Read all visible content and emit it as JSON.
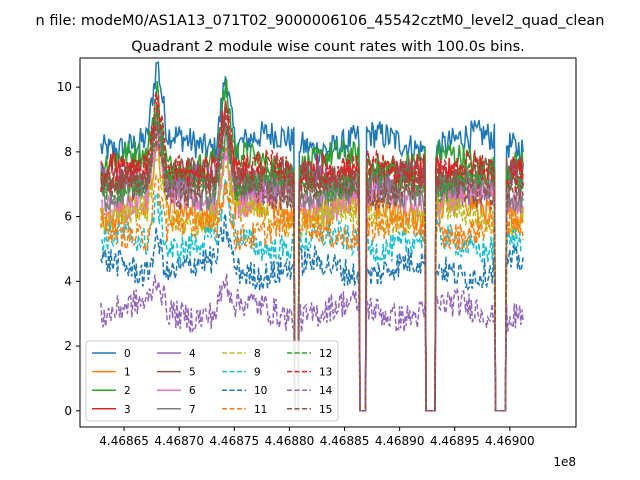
{
  "chart_data": {
    "type": "line",
    "suptitle": "n file: modeM0/AS1A13_071T02_9000006106_45542cztM0_level2_quad_clean",
    "title": "Quadrant 2 module wise count rates with 100.0s bins.",
    "xlabel": "",
    "ylabel": "",
    "x_offset_label": "1e8",
    "xlim": [
      446861000,
      446906000
    ],
    "ylim": [
      -0.5,
      10.9
    ],
    "xticks": [
      446865000,
      446870000,
      446875000,
      446880000,
      446885000,
      446890000,
      446895000,
      446900000
    ],
    "xtick_labels": [
      "4.46865",
      "4.46870",
      "4.46875",
      "4.46880",
      "4.46885",
      "4.46890",
      "4.46895",
      "4.46900"
    ],
    "yticks": [
      0,
      2,
      4,
      6,
      8,
      10
    ],
    "ytick_labels": [
      "0",
      "2",
      "4",
      "6",
      "8",
      "10"
    ],
    "x_start": 446862900,
    "x_end": 446901200,
    "bin_seconds": 100,
    "gaps": [
      [
        446880500,
        446880800
      ],
      [
        446886400,
        446886900
      ],
      [
        446892400,
        446893200
      ],
      [
        446898700,
        446899600
      ]
    ],
    "peaks": [
      446868000,
      446874200
    ],
    "grid": false,
    "legend": {
      "placement": "lower-left",
      "ncol": 4
    },
    "series": [
      {
        "name": "0",
        "color": "#1f77b4",
        "dash": "solid",
        "base": 8.3
      },
      {
        "name": "1",
        "color": "#ff7f0e",
        "dash": "solid",
        "base": 6.2
      },
      {
        "name": "2",
        "color": "#2ca02c",
        "dash": "solid",
        "base": 7.7
      },
      {
        "name": "3",
        "color": "#d62728",
        "dash": "solid",
        "base": 7.3
      },
      {
        "name": "4",
        "color": "#9467bd",
        "dash": "solid",
        "base": 7.0
      },
      {
        "name": "5",
        "color": "#8c564b",
        "dash": "solid",
        "base": 7.2
      },
      {
        "name": "6",
        "color": "#e377c2",
        "dash": "solid",
        "base": 6.5
      },
      {
        "name": "7",
        "color": "#7f7f7f",
        "dash": "solid",
        "base": 6.8
      },
      {
        "name": "8",
        "color": "#bcbd22",
        "dash": "dashed",
        "base": 6.0
      },
      {
        "name": "9",
        "color": "#17becf",
        "dash": "dashed",
        "base": 5.2
      },
      {
        "name": "10",
        "color": "#1f77b4",
        "dash": "dashed",
        "base": 4.4
      },
      {
        "name": "11",
        "color": "#ff7f0e",
        "dash": "dashed",
        "base": 5.6
      },
      {
        "name": "12",
        "color": "#2ca02c",
        "dash": "dashed",
        "base": 7.1
      },
      {
        "name": "13",
        "color": "#d62728",
        "dash": "dashed",
        "base": 7.4
      },
      {
        "name": "14",
        "color": "#9467bd",
        "dash": "dashed",
        "base": 3.1
      },
      {
        "name": "15",
        "color": "#8c564b",
        "dash": "dashed",
        "base": 6.9
      }
    ]
  }
}
